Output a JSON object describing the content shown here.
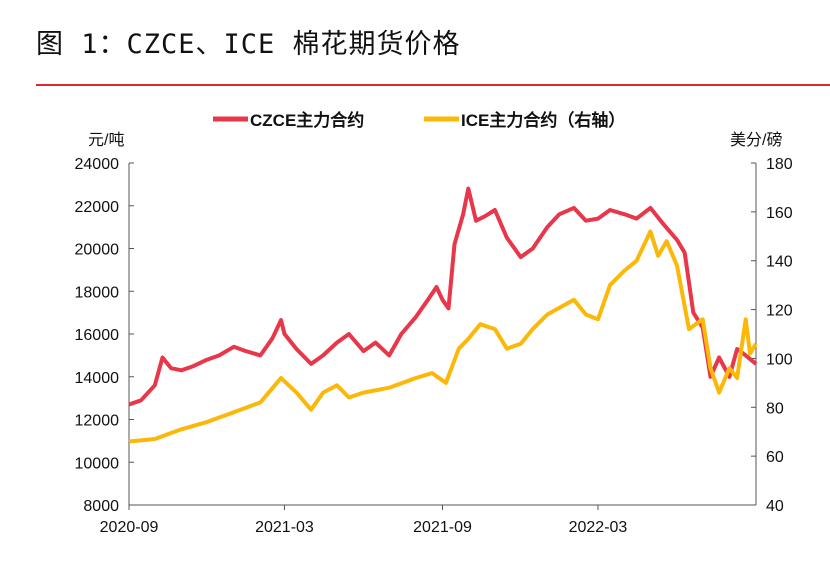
{
  "title": "图 1：CZCE、ICE 棉花期货价格",
  "chart_data": {
    "type": "line",
    "title": "图 1：CZCE、ICE 棉花期货价格",
    "ylabel_left": "元/吨",
    "ylabel_right": "美分/磅",
    "ylim_left": [
      8000,
      24000
    ],
    "ylim_right": [
      40,
      180
    ],
    "yticks_left": [
      "24000",
      "22000",
      "20000",
      "18000",
      "16000",
      "14000",
      "12000",
      "10000",
      "8000"
    ],
    "yticks_right": [
      "180",
      "160",
      "140",
      "120",
      "100",
      "80",
      "60",
      "40"
    ],
    "xlim": [
      "2020-09-01",
      "2022-09-01"
    ],
    "xticks": [
      "2020-09",
      "2021-03",
      "2021-09",
      "2022-03"
    ],
    "legend_position": "top",
    "grid": false,
    "series": [
      {
        "name": "CZCE主力合约",
        "axis": "left",
        "color": "#e8374a",
        "x": [
          "2020-09-01",
          "2020-09-15",
          "2020-10-01",
          "2020-10-10",
          "2020-10-20",
          "2020-11-01",
          "2020-11-15",
          "2020-12-01",
          "2020-12-15",
          "2021-01-01",
          "2021-01-15",
          "2021-02-01",
          "2021-02-15",
          "2021-02-25",
          "2021-03-01",
          "2021-03-15",
          "2021-04-01",
          "2021-04-15",
          "2021-05-01",
          "2021-05-15",
          "2021-06-01",
          "2021-06-15",
          "2021-07-01",
          "2021-07-15",
          "2021-08-01",
          "2021-08-15",
          "2021-08-25",
          "2021-09-01",
          "2021-09-08",
          "2021-09-15",
          "2021-09-25",
          "2021-10-01",
          "2021-10-10",
          "2021-10-20",
          "2021-11-01",
          "2021-11-15",
          "2021-12-01",
          "2021-12-15",
          "2022-01-01",
          "2022-01-15",
          "2022-02-01",
          "2022-02-15",
          "2022-03-01",
          "2022-03-15",
          "2022-04-01",
          "2022-04-15",
          "2022-05-01",
          "2022-05-15",
          "2022-06-01",
          "2022-06-10",
          "2022-06-20",
          "2022-07-01",
          "2022-07-10",
          "2022-07-20",
          "2022-08-01",
          "2022-08-10",
          "2022-08-20",
          "2022-09-01"
        ],
        "values": [
          12700,
          12900,
          13600,
          14900,
          14400,
          14300,
          14500,
          14800,
          15000,
          15400,
          15200,
          15000,
          15800,
          16650,
          16000,
          15300,
          14600,
          15000,
          15600,
          16000,
          15200,
          15600,
          15000,
          16000,
          16800,
          17600,
          18200,
          17600,
          17200,
          20200,
          21600,
          22800,
          21300,
          21500,
          21800,
          20500,
          19600,
          20000,
          21000,
          21600,
          21900,
          21300,
          21400,
          21800,
          21600,
          21400,
          21900,
          21200,
          20400,
          19800,
          17000,
          16300,
          14000,
          14900,
          14000,
          15300,
          15000,
          14600
        ]
      },
      {
        "name": "ICE主力合约（右轴）",
        "axis": "right",
        "color": "#fbb809",
        "x": [
          "2020-09-01",
          "2020-10-01",
          "2020-11-01",
          "2020-12-01",
          "2021-01-01",
          "2021-02-01",
          "2021-02-25",
          "2021-03-15",
          "2021-04-01",
          "2021-04-15",
          "2021-05-01",
          "2021-05-15",
          "2021-06-01",
          "2021-07-01",
          "2021-08-01",
          "2021-08-20",
          "2021-09-05",
          "2021-09-20",
          "2021-10-01",
          "2021-10-15",
          "2021-11-01",
          "2021-11-15",
          "2021-12-01",
          "2021-12-15",
          "2022-01-01",
          "2022-02-01",
          "2022-02-15",
          "2022-03-01",
          "2022-03-15",
          "2022-04-01",
          "2022-04-15",
          "2022-05-01",
          "2022-05-10",
          "2022-05-20",
          "2022-06-01",
          "2022-06-15",
          "2022-07-01",
          "2022-07-10",
          "2022-07-20",
          "2022-08-01",
          "2022-08-10",
          "2022-08-20",
          "2022-08-25",
          "2022-09-01"
        ],
        "values": [
          66,
          67,
          71,
          74,
          78,
          82,
          92,
          86,
          79,
          86,
          89,
          84,
          86,
          88,
          92,
          94,
          90,
          104,
          108,
          114,
          112,
          104,
          106,
          112,
          118,
          124,
          118,
          116,
          130,
          136,
          140,
          152,
          142,
          148,
          138,
          112,
          116,
          96,
          86,
          96,
          92,
          116,
          102,
          106
        ]
      }
    ]
  }
}
